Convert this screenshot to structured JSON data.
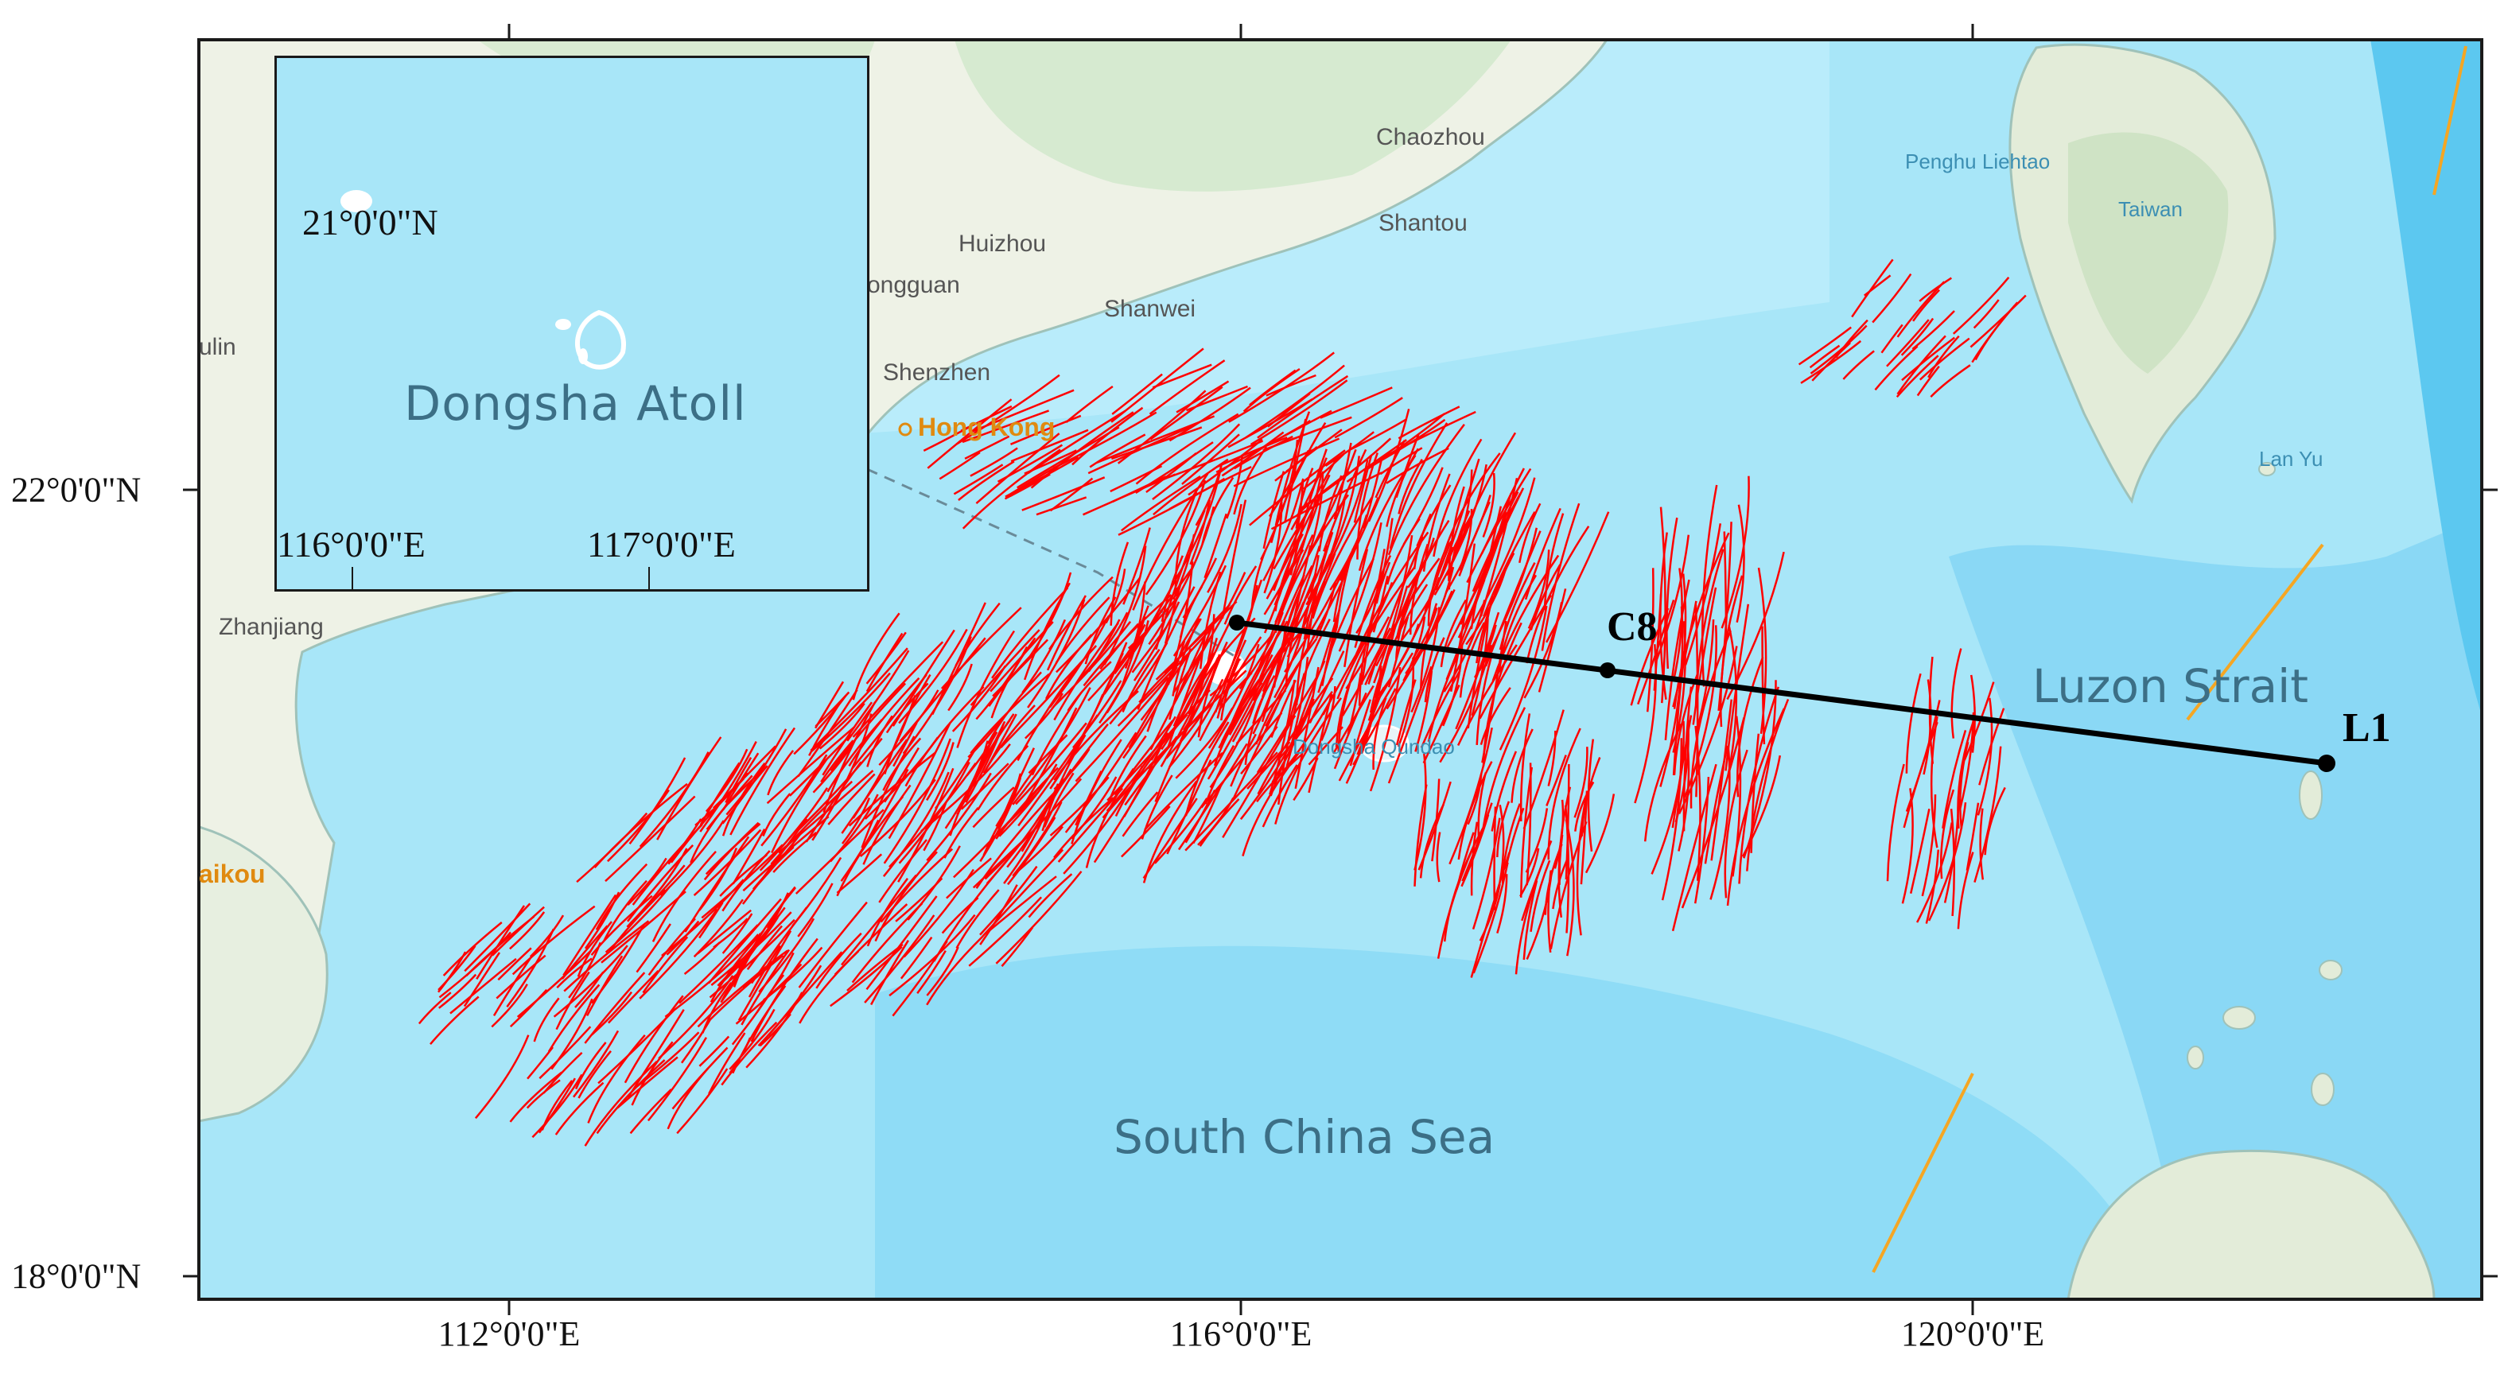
{
  "map": {
    "axes": {
      "lon_ticks": [
        "112°0'0\"E",
        "116°0'0\"E",
        "120°0'0\"E"
      ],
      "lat_ticks": [
        "22°0'0\"N",
        "18°0'0\"N"
      ]
    },
    "place_labels": {
      "chaozhou": "Chaozhou",
      "shantou": "Shantou",
      "huizhou": "Huizhou",
      "dongguan": "ongguan",
      "shanwei": "Shanwei",
      "shenzhen": "Shenzhen",
      "hong_kong": "Hong Kong",
      "zhanjiang": "Zhanjiang",
      "haikou": "aikou",
      "yulin": "ulin",
      "penghu": "Penghu Liehtao",
      "taiwan": "Taiwan",
      "lan_yu": "Lan Yu",
      "luzon_strait": "Luzon Strait",
      "south_china_sea": "South China Sea",
      "dongsha_qundao": "Dongsha Qundao"
    },
    "transect": {
      "station_c8": "C8",
      "station_l1": "L1"
    },
    "inset": {
      "title": "Dongsha Atoll",
      "lat_label": "21°0'0\"N",
      "lon_label_1": "116°0'0\"E",
      "lon_label_2": "117°0'0\"E"
    },
    "colors": {
      "sea": "#a8e6f8",
      "deep_sea": "#7fd6f5",
      "land": "#eef2e6",
      "wave_lines": "#ff0000",
      "fault_lines": "#f5a623",
      "transect": "#000000"
    }
  }
}
